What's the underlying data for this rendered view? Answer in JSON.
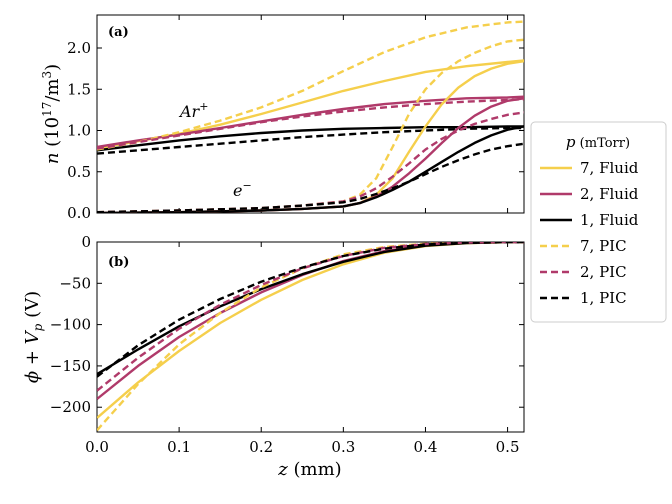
{
  "chart_data": [
    {
      "type": "line",
      "panel_label": "(a)",
      "ylabel_main": "n",
      "ylabel_units": "(10",
      "ylabel_exp": "17",
      "ylabel_tail": "/m",
      "ylabel_exp2": "3",
      "ylabel_close": ")",
      "xlim": [
        0,
        0.52
      ],
      "ylim": [
        0,
        2.4
      ],
      "yticks": [
        0.0,
        0.5,
        1.0,
        1.5,
        2.0
      ],
      "ytick_labels": [
        "0.0",
        "0.5",
        "1.0",
        "1.5",
        "2.0"
      ],
      "xticks": [
        0.0,
        0.1,
        0.2,
        0.3,
        0.4,
        0.5
      ],
      "annotations": [
        {
          "text": "Ar",
          "sup": "+",
          "x": 0.1,
          "y": 1.4
        },
        {
          "text": "e",
          "sup": "−",
          "x": 0.2,
          "y": 0.25
        }
      ],
      "series": [
        {
          "name": "Ar+, 7, Fluid",
          "color": "#f5cf4c",
          "dash": false,
          "x": [
            0,
            0.05,
            0.1,
            0.15,
            0.2,
            0.25,
            0.3,
            0.35,
            0.4,
            0.45,
            0.5,
            0.52
          ],
          "y": [
            0.78,
            0.87,
            0.96,
            1.07,
            1.2,
            1.34,
            1.48,
            1.6,
            1.71,
            1.78,
            1.83,
            1.85
          ]
        },
        {
          "name": "Ar+, 2, Fluid",
          "color": "#b03a6a",
          "dash": false,
          "x": [
            0,
            0.05,
            0.1,
            0.15,
            0.2,
            0.25,
            0.3,
            0.35,
            0.4,
            0.45,
            0.5,
            0.52
          ],
          "y": [
            0.8,
            0.88,
            0.95,
            1.03,
            1.11,
            1.19,
            1.26,
            1.32,
            1.36,
            1.39,
            1.4,
            1.41
          ]
        },
        {
          "name": "Ar+, 1, Fluid",
          "color": "#000000",
          "dash": false,
          "x": [
            0,
            0.05,
            0.1,
            0.15,
            0.2,
            0.25,
            0.3,
            0.35,
            0.4,
            0.45,
            0.5,
            0.52
          ],
          "y": [
            0.76,
            0.82,
            0.88,
            0.93,
            0.97,
            1.0,
            1.02,
            1.03,
            1.04,
            1.04,
            1.05,
            1.05
          ]
        },
        {
          "name": "Ar+, 7, PIC",
          "color": "#f5cf4c",
          "dash": true,
          "x": [
            0,
            0.05,
            0.1,
            0.15,
            0.2,
            0.25,
            0.3,
            0.35,
            0.4,
            0.45,
            0.5,
            0.52
          ],
          "y": [
            0.77,
            0.86,
            0.98,
            1.12,
            1.28,
            1.48,
            1.72,
            1.95,
            2.13,
            2.25,
            2.31,
            2.32
          ]
        },
        {
          "name": "Ar+, 2, PIC",
          "color": "#b03a6a",
          "dash": true,
          "x": [
            0,
            0.05,
            0.1,
            0.15,
            0.2,
            0.25,
            0.3,
            0.35,
            0.4,
            0.45,
            0.5,
            0.52
          ],
          "y": [
            0.78,
            0.86,
            0.94,
            1.02,
            1.1,
            1.17,
            1.23,
            1.28,
            1.32,
            1.35,
            1.37,
            1.38
          ]
        },
        {
          "name": "Ar+, 1, PIC",
          "color": "#000000",
          "dash": true,
          "x": [
            0,
            0.05,
            0.1,
            0.15,
            0.2,
            0.25,
            0.3,
            0.35,
            0.4,
            0.45,
            0.5,
            0.52
          ],
          "y": [
            0.72,
            0.76,
            0.8,
            0.84,
            0.88,
            0.92,
            0.95,
            0.98,
            1.0,
            1.02,
            1.03,
            1.03
          ]
        },
        {
          "name": "e-, 7, Fluid",
          "color": "#f5cf4c",
          "dash": false,
          "x": [
            0,
            0.1,
            0.2,
            0.25,
            0.3,
            0.32,
            0.34,
            0.36,
            0.38,
            0.4,
            0.42,
            0.44,
            0.46,
            0.48,
            0.5,
            0.52
          ],
          "y": [
            0.0,
            0.01,
            0.03,
            0.05,
            0.08,
            0.12,
            0.22,
            0.42,
            0.74,
            1.05,
            1.32,
            1.52,
            1.66,
            1.75,
            1.81,
            1.84
          ]
        },
        {
          "name": "e-, 2, Fluid",
          "color": "#b03a6a",
          "dash": false,
          "x": [
            0,
            0.1,
            0.2,
            0.25,
            0.3,
            0.32,
            0.34,
            0.36,
            0.38,
            0.4,
            0.42,
            0.44,
            0.46,
            0.48,
            0.5,
            0.52
          ],
          "y": [
            0.0,
            0.01,
            0.03,
            0.05,
            0.08,
            0.12,
            0.2,
            0.32,
            0.48,
            0.66,
            0.85,
            1.03,
            1.18,
            1.29,
            1.36,
            1.39
          ]
        },
        {
          "name": "e-, 1, Fluid",
          "color": "#000000",
          "dash": false,
          "x": [
            0,
            0.1,
            0.2,
            0.25,
            0.3,
            0.32,
            0.34,
            0.36,
            0.38,
            0.4,
            0.42,
            0.44,
            0.46,
            0.48,
            0.5,
            0.52
          ],
          "y": [
            0.0,
            0.01,
            0.03,
            0.05,
            0.08,
            0.12,
            0.19,
            0.28,
            0.38,
            0.5,
            0.62,
            0.74,
            0.85,
            0.94,
            1.01,
            1.05
          ]
        },
        {
          "name": "e-, 7, PIC",
          "color": "#f5cf4c",
          "dash": true,
          "x": [
            0,
            0.1,
            0.2,
            0.25,
            0.3,
            0.32,
            0.34,
            0.36,
            0.38,
            0.4,
            0.42,
            0.44,
            0.46,
            0.48,
            0.5,
            0.52
          ],
          "y": [
            0.01,
            0.03,
            0.06,
            0.09,
            0.14,
            0.22,
            0.42,
            0.8,
            1.2,
            1.5,
            1.7,
            1.84,
            1.94,
            2.02,
            2.08,
            2.1
          ]
        },
        {
          "name": "e-, 2, PIC",
          "color": "#b03a6a",
          "dash": true,
          "x": [
            0,
            0.1,
            0.2,
            0.25,
            0.3,
            0.32,
            0.34,
            0.36,
            0.38,
            0.4,
            0.42,
            0.44,
            0.46,
            0.48,
            0.5,
            0.52
          ],
          "y": [
            0.01,
            0.03,
            0.06,
            0.09,
            0.14,
            0.2,
            0.3,
            0.44,
            0.6,
            0.77,
            0.9,
            1.0,
            1.08,
            1.14,
            1.19,
            1.22
          ]
        },
        {
          "name": "e-, 1, PIC",
          "color": "#000000",
          "dash": true,
          "x": [
            0,
            0.1,
            0.2,
            0.25,
            0.3,
            0.32,
            0.34,
            0.36,
            0.38,
            0.4,
            0.42,
            0.44,
            0.46,
            0.48,
            0.5,
            0.52
          ],
          "y": [
            0.01,
            0.03,
            0.06,
            0.09,
            0.13,
            0.17,
            0.23,
            0.3,
            0.38,
            0.47,
            0.56,
            0.64,
            0.71,
            0.77,
            0.81,
            0.84
          ]
        }
      ]
    },
    {
      "type": "line",
      "panel_label": "(b)",
      "ylabel": "ϕ + V",
      "ylabel_sub": "p",
      "ylabel_units": " (V)",
      "xlabel_var": "z",
      "xlabel_units": " (mm)",
      "xlim": [
        0,
        0.52
      ],
      "ylim": [
        -230,
        0
      ],
      "yticks": [
        0,
        -50,
        -100,
        -150,
        -200
      ],
      "ytick_labels": [
        "0",
        "−50",
        "−100",
        "−150",
        "−200"
      ],
      "xticks": [
        0.0,
        0.1,
        0.2,
        0.3,
        0.4,
        0.5
      ],
      "xtick_labels": [
        "0.0",
        "0.1",
        "0.2",
        "0.3",
        "0.4",
        "0.5"
      ],
      "series": [
        {
          "name": "7, Fluid",
          "color": "#f5cf4c",
          "dash": false,
          "x": [
            0,
            0.05,
            0.1,
            0.15,
            0.2,
            0.25,
            0.3,
            0.35,
            0.4,
            0.45,
            0.5,
            0.52
          ],
          "y": [
            -213,
            -170,
            -132,
            -98,
            -70,
            -46,
            -27,
            -13,
            -5,
            -1.5,
            -0.3,
            0
          ]
        },
        {
          "name": "2, Fluid",
          "color": "#b03a6a",
          "dash": false,
          "x": [
            0,
            0.05,
            0.1,
            0.15,
            0.2,
            0.25,
            0.3,
            0.35,
            0.4,
            0.45,
            0.5,
            0.52
          ],
          "y": [
            -190,
            -150,
            -115,
            -86,
            -61,
            -40,
            -23,
            -11,
            -4,
            -1,
            -0.2,
            0
          ]
        },
        {
          "name": "1, Fluid",
          "color": "#000000",
          "dash": false,
          "x": [
            0,
            0.05,
            0.1,
            0.15,
            0.2,
            0.25,
            0.3,
            0.35,
            0.4,
            0.45,
            0.5,
            0.52
          ],
          "y": [
            -160,
            -130,
            -102,
            -78,
            -57,
            -39,
            -24,
            -12,
            -4.5,
            -1.2,
            -0.2,
            0
          ]
        },
        {
          "name": "7, PIC",
          "color": "#f5cf4c",
          "dash": true,
          "x": [
            0,
            0.05,
            0.1,
            0.15,
            0.2,
            0.25,
            0.3,
            0.35,
            0.4,
            0.45,
            0.5,
            0.52
          ],
          "y": [
            -228,
            -172,
            -124,
            -86,
            -55,
            -32,
            -15,
            -6,
            -2,
            -0.5,
            0,
            0
          ]
        },
        {
          "name": "2, PIC",
          "color": "#b03a6a",
          "dash": true,
          "x": [
            0,
            0.05,
            0.1,
            0.15,
            0.2,
            0.25,
            0.3,
            0.35,
            0.4,
            0.45,
            0.5,
            0.52
          ],
          "y": [
            -180,
            -140,
            -105,
            -76,
            -52,
            -32,
            -17,
            -7,
            -2.5,
            -0.6,
            0,
            0
          ]
        },
        {
          "name": "1, PIC",
          "color": "#000000",
          "dash": true,
          "x": [
            0,
            0.05,
            0.1,
            0.15,
            0.2,
            0.25,
            0.3,
            0.35,
            0.4,
            0.45,
            0.5,
            0.52
          ],
          "y": [
            -163,
            -125,
            -94,
            -69,
            -48,
            -31,
            -17,
            -8,
            -3,
            -0.8,
            0,
            0
          ]
        }
      ]
    }
  ],
  "legend": {
    "title_var": "p",
    "title_units": " (mTorr)",
    "entries": [
      {
        "label": "7, Fluid",
        "color": "#f5cf4c",
        "dash": false
      },
      {
        "label": "2, Fluid",
        "color": "#b03a6a",
        "dash": false
      },
      {
        "label": "1, Fluid",
        "color": "#000000",
        "dash": false
      },
      {
        "label": "7, PIC",
        "color": "#f5cf4c",
        "dash": true
      },
      {
        "label": "2, PIC",
        "color": "#b03a6a",
        "dash": true
      },
      {
        "label": "1, PIC",
        "color": "#000000",
        "dash": true
      }
    ]
  }
}
